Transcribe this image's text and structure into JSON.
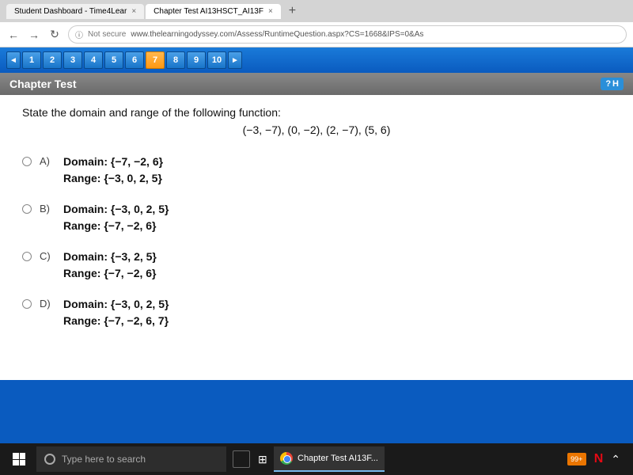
{
  "browser": {
    "tabs": [
      {
        "title": "Student Dashboard - Time4Lear",
        "active": false
      },
      {
        "title": "Chapter Test AI13HSCT_AI13F",
        "active": true
      }
    ],
    "back_label": "←",
    "fwd_label": "→",
    "reload_label": "↻",
    "not_secure": "Not secure",
    "url": "www.thelearningodyssey.com/Assess/RuntimeQuestion.aspx?CS=1668&IPS=0&As"
  },
  "nav": {
    "prev": "◄",
    "pages": [
      "1",
      "2",
      "3",
      "4",
      "5",
      "6",
      "7",
      "8",
      "9",
      "10"
    ],
    "active": 6,
    "next": "►"
  },
  "header": {
    "title": "Chapter Test",
    "help_icon": "?",
    "help_label": "H"
  },
  "question": {
    "prompt": "State the domain and range of the following function:",
    "points": "(−3, −7), (0, −2), (2, −7), (5, 6)",
    "options": [
      {
        "letter": "A)",
        "domain": "Domain: {−7, −2, 6}",
        "range": "Range: {−3, 0, 2, 5}"
      },
      {
        "letter": "B)",
        "domain": "Domain: {−3, 0, 2, 5}",
        "range": "Range: {−7, −2, 6}"
      },
      {
        "letter": "C)",
        "domain": "Domain: {−3, 2, 5}",
        "range": "Range: {−7, −2, 6}"
      },
      {
        "letter": "D)",
        "domain": "Domain: {−3, 0, 2, 5}",
        "range": "Range: {−7, −2, 6, 7}"
      }
    ]
  },
  "taskbar": {
    "search_placeholder": "Type here to search",
    "app_label": "Chapter Test AI13F...",
    "notif_count": "99+",
    "n_icon": "N"
  }
}
